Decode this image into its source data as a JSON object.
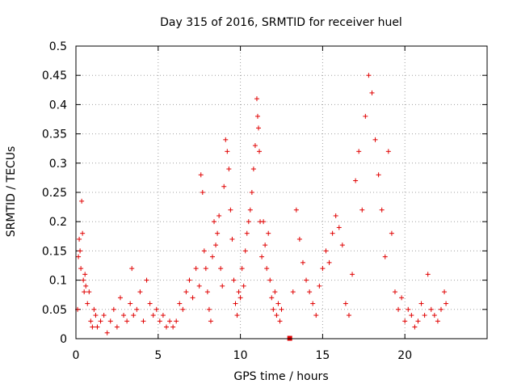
{
  "chart_data": {
    "type": "scatter",
    "title": "Day 315 of 2016, SRMTID for receiver huel",
    "xlabel": "GPS time / hours",
    "ylabel": "SRMTID / TECUs",
    "xlim": [
      0,
      25
    ],
    "ylim": [
      0,
      0.5
    ],
    "grid": true,
    "marker": "+",
    "series_color": "#e00000",
    "x_ticks": [
      0,
      5,
      10,
      15,
      20
    ],
    "y_ticks": [
      0,
      0.05,
      0.1,
      0.15,
      0.2,
      0.25,
      0.3,
      0.35,
      0.4,
      0.45,
      0.5
    ],
    "x_tick_labels": [
      "0",
      "5",
      "10",
      "15",
      "20"
    ],
    "y_tick_labels": [
      "0",
      "0.05",
      "0.1",
      "0.15",
      "0.2",
      "0.25",
      "0.3",
      "0.35",
      "0.4",
      "0.45",
      "0.5"
    ],
    "series": [
      {
        "name": "SRMTID",
        "points": [
          [
            0.1,
            0.05
          ],
          [
            0.15,
            0.14
          ],
          [
            0.2,
            0.17
          ],
          [
            0.25,
            0.15
          ],
          [
            0.3,
            0.12
          ],
          [
            0.35,
            0.235
          ],
          [
            0.4,
            0.18
          ],
          [
            0.45,
            0.1
          ],
          [
            0.5,
            0.08
          ],
          [
            0.55,
            0.11
          ],
          [
            0.6,
            0.09
          ],
          [
            0.7,
            0.06
          ],
          [
            0.8,
            0.08
          ],
          [
            0.9,
            0.03
          ],
          [
            1.0,
            0.02
          ],
          [
            1.1,
            0.05
          ],
          [
            1.2,
            0.04
          ],
          [
            1.3,
            0.02
          ],
          [
            1.5,
            0.03
          ],
          [
            1.7,
            0.04
          ],
          [
            1.9,
            0.01
          ],
          [
            2.1,
            0.03
          ],
          [
            2.3,
            0.05
          ],
          [
            2.5,
            0.02
          ],
          [
            2.7,
            0.07
          ],
          [
            2.9,
            0.04
          ],
          [
            3.1,
            0.03
          ],
          [
            3.3,
            0.06
          ],
          [
            3.4,
            0.12
          ],
          [
            3.5,
            0.04
          ],
          [
            3.7,
            0.05
          ],
          [
            3.9,
            0.08
          ],
          [
            4.1,
            0.03
          ],
          [
            4.3,
            0.1
          ],
          [
            4.5,
            0.06
          ],
          [
            4.7,
            0.04
          ],
          [
            4.9,
            0.05
          ],
          [
            5.1,
            0.03
          ],
          [
            5.3,
            0.04
          ],
          [
            5.5,
            0.02
          ],
          [
            5.7,
            0.03
          ],
          [
            5.9,
            0.02
          ],
          [
            6.1,
            0.03
          ],
          [
            6.3,
            0.06
          ],
          [
            6.5,
            0.05
          ],
          [
            6.7,
            0.08
          ],
          [
            6.9,
            0.1
          ],
          [
            7.1,
            0.07
          ],
          [
            7.3,
            0.12
          ],
          [
            7.5,
            0.09
          ],
          [
            7.6,
            0.28
          ],
          [
            7.7,
            0.25
          ],
          [
            7.8,
            0.15
          ],
          [
            7.9,
            0.12
          ],
          [
            8.0,
            0.08
          ],
          [
            8.1,
            0.05
          ],
          [
            8.2,
            0.03
          ],
          [
            8.3,
            0.14
          ],
          [
            8.4,
            0.2
          ],
          [
            8.5,
            0.16
          ],
          [
            8.6,
            0.18
          ],
          [
            8.7,
            0.21
          ],
          [
            8.8,
            0.12
          ],
          [
            8.9,
            0.09
          ],
          [
            9.0,
            0.26
          ],
          [
            9.1,
            0.34
          ],
          [
            9.2,
            0.32
          ],
          [
            9.3,
            0.29
          ],
          [
            9.4,
            0.22
          ],
          [
            9.5,
            0.17
          ],
          [
            9.6,
            0.1
          ],
          [
            9.7,
            0.06
          ],
          [
            9.8,
            0.04
          ],
          [
            9.9,
            0.08
          ],
          [
            10.0,
            0.07
          ],
          [
            10.1,
            0.12
          ],
          [
            10.2,
            0.09
          ],
          [
            10.3,
            0.15
          ],
          [
            10.4,
            0.18
          ],
          [
            10.5,
            0.2
          ],
          [
            10.6,
            0.22
          ],
          [
            10.7,
            0.25
          ],
          [
            10.8,
            0.29
          ],
          [
            10.9,
            0.33
          ],
          [
            11.0,
            0.41
          ],
          [
            11.05,
            0.38
          ],
          [
            11.1,
            0.36
          ],
          [
            11.15,
            0.32
          ],
          [
            11.2,
            0.2
          ],
          [
            11.3,
            0.14
          ],
          [
            11.4,
            0.2
          ],
          [
            11.5,
            0.16
          ],
          [
            11.6,
            0.12
          ],
          [
            11.7,
            0.18
          ],
          [
            11.8,
            0.1
          ],
          [
            11.9,
            0.07
          ],
          [
            12.0,
            0.05
          ],
          [
            12.1,
            0.08
          ],
          [
            12.2,
            0.04
          ],
          [
            12.3,
            0.06
          ],
          [
            12.4,
            0.03
          ],
          [
            12.5,
            0.05
          ],
          [
            13.0,
            0.0
          ],
          [
            13.2,
            0.08
          ],
          [
            13.4,
            0.22
          ],
          [
            13.6,
            0.17
          ],
          [
            13.8,
            0.13
          ],
          [
            14.0,
            0.1
          ],
          [
            14.2,
            0.08
          ],
          [
            14.4,
            0.06
          ],
          [
            14.6,
            0.04
          ],
          [
            14.8,
            0.09
          ],
          [
            15.0,
            0.12
          ],
          [
            15.2,
            0.15
          ],
          [
            15.4,
            0.13
          ],
          [
            15.6,
            0.18
          ],
          [
            15.8,
            0.21
          ],
          [
            16.0,
            0.19
          ],
          [
            16.2,
            0.16
          ],
          [
            16.4,
            0.06
          ],
          [
            16.6,
            0.04
          ],
          [
            16.8,
            0.11
          ],
          [
            17.0,
            0.27
          ],
          [
            17.2,
            0.32
          ],
          [
            17.4,
            0.22
          ],
          [
            17.6,
            0.38
          ],
          [
            17.8,
            0.45
          ],
          [
            18.0,
            0.42
          ],
          [
            18.2,
            0.34
          ],
          [
            18.4,
            0.28
          ],
          [
            18.6,
            0.22
          ],
          [
            18.8,
            0.14
          ],
          [
            19.0,
            0.32
          ],
          [
            19.2,
            0.18
          ],
          [
            19.4,
            0.08
          ],
          [
            19.6,
            0.05
          ],
          [
            19.8,
            0.07
          ],
          [
            20.0,
            0.03
          ],
          [
            20.2,
            0.05
          ],
          [
            20.4,
            0.04
          ],
          [
            20.6,
            0.02
          ],
          [
            20.8,
            0.03
          ],
          [
            21.0,
            0.06
          ],
          [
            21.2,
            0.04
          ],
          [
            21.4,
            0.11
          ],
          [
            21.6,
            0.05
          ],
          [
            21.8,
            0.04
          ],
          [
            22.0,
            0.03
          ],
          [
            22.2,
            0.05
          ],
          [
            22.4,
            0.08
          ],
          [
            22.5,
            0.06
          ]
        ]
      }
    ]
  }
}
